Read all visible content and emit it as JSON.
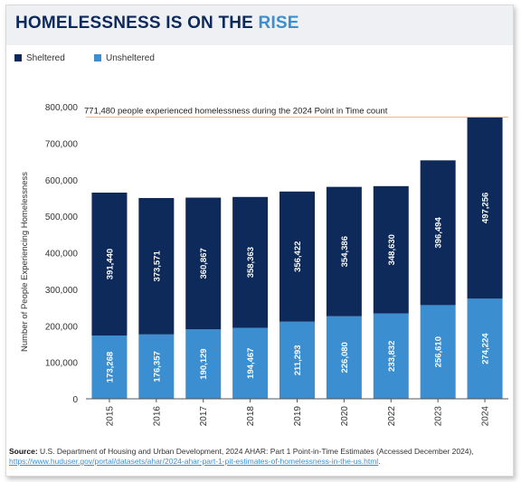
{
  "header": {
    "title_main": "HOMELESSNESS IS ON THE ",
    "title_accent": "RISE"
  },
  "colors": {
    "sheltered": "#0d2a5b",
    "unsheltered": "#3b8fd1",
    "accent": "#3b8fd1",
    "reference_line": "#f4b38a"
  },
  "source": {
    "label": "Source:",
    "text": "U.S. Department of Housing and Urban Development, 2024 AHAR: Part 1 Point-in-Time Estimates (Accessed December 2024),",
    "link": "https://www.huduser.gov/portal/datasets/ahar/2024-ahar-part-1-pit-estimates-of-homelessness-in-the-us.html",
    "suffix": "."
  },
  "chart_data": {
    "type": "bar",
    "stacked": true,
    "categories": [
      "2015",
      "2016",
      "2017",
      "2018",
      "2019",
      "2020",
      "2022",
      "2023",
      "2024"
    ],
    "series": [
      {
        "name": "Unsheltered",
        "color": "#3b8fd1",
        "values": [
          173268,
          176357,
          190129,
          194467,
          211293,
          226080,
          233832,
          256610,
          274224
        ]
      },
      {
        "name": "Sheltered",
        "color": "#0d2a5b",
        "values": [
          391440,
          373571,
          360867,
          358363,
          356422,
          354386,
          348630,
          396494,
          497256
        ]
      }
    ],
    "legend_order": [
      "Sheltered",
      "Unsheltered"
    ],
    "legend_position": "top-left",
    "ylabel": "Number of People Experiencing Homelessness",
    "xlabel": "",
    "ylim": [
      0,
      800000
    ],
    "yticks": [
      0,
      100000,
      200000,
      300000,
      400000,
      500000,
      600000,
      700000,
      800000
    ],
    "grid": false,
    "annotation": {
      "text": "771,480 people experienced homelessness during the 2024 Point in Time count",
      "value": 771480
    }
  }
}
